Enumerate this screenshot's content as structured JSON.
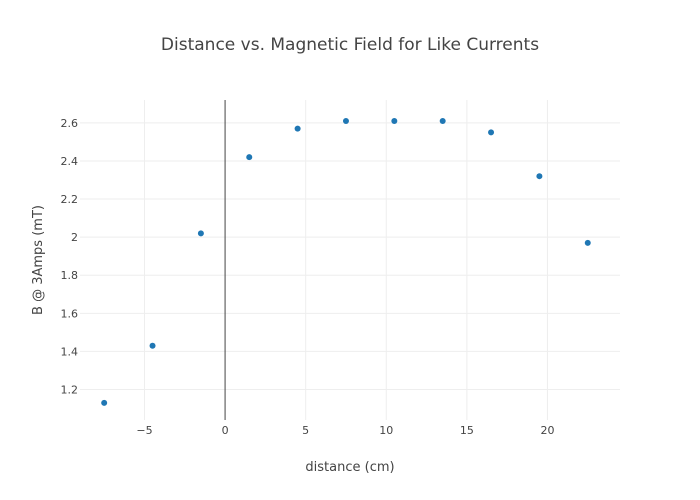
{
  "chart_data": {
    "type": "scatter",
    "title": "Distance vs. Magnetic Field for Like Currents",
    "xlabel": "distance (cm)",
    "ylabel": "B @ 3Amps (mT)",
    "xlim": [
      -9,
      24.5
    ],
    "ylim": [
      1.04,
      2.72
    ],
    "x_ticks": [
      -5,
      0,
      5,
      10,
      15,
      20
    ],
    "x_tick_labels": [
      "−5",
      "0",
      "5",
      "10",
      "15",
      "20"
    ],
    "y_ticks": [
      1.2,
      1.4,
      1.6,
      1.8,
      2.0,
      2.2,
      2.4,
      2.6
    ],
    "y_tick_labels": [
      "1.2",
      "1.4",
      "1.6",
      "1.8",
      "2",
      "2.2",
      "2.4",
      "2.6"
    ],
    "grid": true,
    "legend": "none",
    "marker_color": "#1f77b4",
    "series": [
      {
        "x": [
          -7.5,
          -4.5,
          -1.5,
          1.5,
          4.5,
          7.5,
          10.5,
          13.5,
          16.5,
          19.5,
          22.5
        ],
        "y": [
          1.13,
          1.43,
          2.02,
          2.42,
          2.57,
          2.61,
          2.61,
          2.61,
          2.55,
          2.32,
          1.97
        ]
      }
    ]
  }
}
